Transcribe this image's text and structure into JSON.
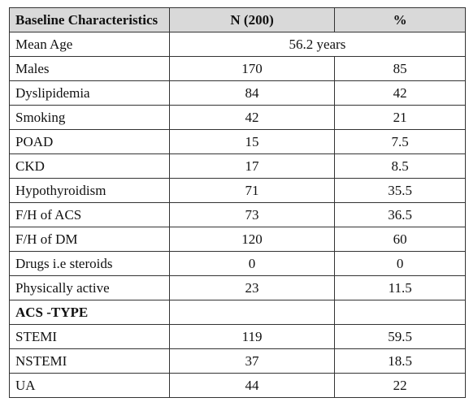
{
  "table": {
    "header": [
      "Baseline Characteristics",
      "N (200)",
      "%"
    ],
    "rows": [
      [
        "Mean Age",
        "56.2 years"
      ],
      [
        "Males",
        "170",
        "85"
      ],
      [
        "Dyslipidemia",
        "84",
        "42"
      ],
      [
        "Smoking",
        "42",
        "21"
      ],
      [
        "POAD",
        "15",
        "7.5"
      ],
      [
        "CKD",
        "17",
        "8.5"
      ],
      [
        "Hypothyroidism",
        "71",
        "35.5"
      ],
      [
        "F/H of ACS",
        "73",
        "36.5"
      ],
      [
        "F/H of DM",
        "120",
        "60"
      ],
      [
        "Drugs i.e steroids",
        "0",
        "0"
      ],
      [
        "Physically active",
        "23",
        "11.5"
      ],
      [
        "ACS -TYPE"
      ],
      [
        "STEMI",
        "119",
        "59.5"
      ],
      [
        "NSTEMI",
        "37",
        "18.5"
      ],
      [
        "UA",
        "44",
        "22"
      ]
    ]
  }
}
